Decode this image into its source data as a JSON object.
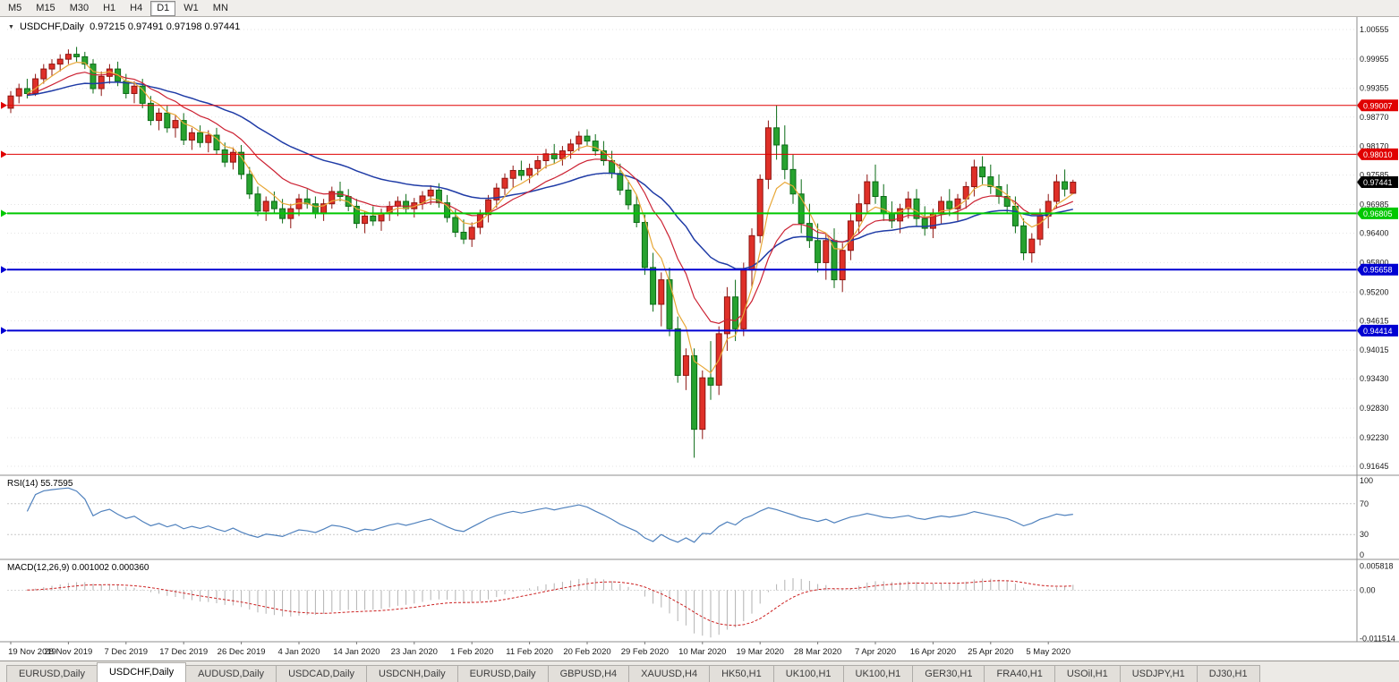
{
  "toolbar": {
    "timeframes": [
      "M5",
      "M15",
      "M30",
      "H1",
      "H4",
      "D1",
      "W1",
      "MN"
    ],
    "active": "D1"
  },
  "header": {
    "dropdown_icon": "▼",
    "symbol": "USDCHF,Daily",
    "ohlc": "0.97215 0.97491 0.97198 0.97441"
  },
  "colors": {
    "bull": "#df3028",
    "bull_border": "#8e1410",
    "bear": "#27a22f",
    "bear_border": "#0b6b16",
    "ma_fast": "#e8a838",
    "ma_mid": "#cc2233",
    "ma_slow": "#1f3ba6",
    "rsi_line": "#4f81bd",
    "macd_hist": "#b2b2b2",
    "macd_signal": "#cc2020",
    "grid": "#e3e3e3",
    "axis_text": "#1a1a1a",
    "line_red": "#e00000",
    "line_green": "#00c800",
    "line_blue": "#0000d2",
    "current_tag_bg": "#000000"
  },
  "chart_data": {
    "type": "candlestick",
    "symbol": "USDCHF",
    "timeframe": "Daily",
    "current_bar": {
      "open": 0.97215,
      "high": 0.97491,
      "low": 0.97198,
      "close": 0.97441
    },
    "price_range_visible": [
      0.91645,
      1.00555
    ],
    "price_axis_labels": [
      "1.00555",
      "0.99955",
      "0.99355",
      "0.98770",
      "0.98170",
      "0.97585",
      "0.96985",
      "0.96400",
      "0.95800",
      "0.95200",
      "0.94615",
      "0.94015",
      "0.93430",
      "0.92830",
      "0.92230",
      "0.91645"
    ],
    "x_tick_labels": [
      "19 Nov 2019",
      "28 Nov 2019",
      "7 Dec 2019",
      "17 Dec 2019",
      "26 Dec 2019",
      "4 Jan 2020",
      "14 Jan 2020",
      "23 Jan 2020",
      "1 Feb 2020",
      "11 Feb 2020",
      "20 Feb 2020",
      "29 Feb 2020",
      "10 Mar 2020",
      "19 Mar 2020",
      "28 Mar 2020",
      "7 Apr 2020",
      "16 Apr 2020",
      "25 Apr 2020",
      "5 May 2020"
    ],
    "candles_per_tick": 7,
    "hlines": [
      {
        "price": 0.99007,
        "label": "0.99007",
        "color": "#e00000",
        "width": 1
      },
      {
        "price": 0.9801,
        "label": "0.98010",
        "color": "#e00000",
        "width": 1
      },
      {
        "price": 0.96805,
        "label": "0.96805",
        "color": "#00c800",
        "width": 2
      },
      {
        "price": 0.95658,
        "label": "0.95658",
        "color": "#0000d2",
        "width": 2
      },
      {
        "price": 0.94414,
        "label": "0.94414",
        "color": "#0000d2",
        "width": 2
      }
    ],
    "current_price": {
      "price": 0.97441,
      "label": "0.97441"
    },
    "moving_averages": [
      {
        "id": "fast",
        "color": "#e8a838",
        "period": 5
      },
      {
        "id": "mid",
        "color": "#cc2233",
        "period": 12
      },
      {
        "id": "slow",
        "color": "#1f3ba6",
        "period": 30
      }
    ],
    "candles": [
      [
        0.9895,
        0.993,
        0.9885,
        0.992
      ],
      [
        0.992,
        0.9945,
        0.9905,
        0.9935
      ],
      [
        0.9935,
        0.9955,
        0.9915,
        0.9925
      ],
      [
        0.9925,
        0.9965,
        0.992,
        0.9955
      ],
      [
        0.9955,
        0.9985,
        0.9945,
        0.9975
      ],
      [
        0.9975,
        0.9995,
        0.996,
        0.9985
      ],
      [
        0.9985,
        1.0005,
        0.997,
        0.9995
      ],
      [
        0.9995,
        1.0015,
        0.9985,
        1.0005
      ],
      [
        1.0005,
        1.002,
        0.999,
        1.0
      ],
      [
        1.0,
        1.001,
        0.9975,
        0.9985
      ],
      [
        0.9985,
        0.9995,
        0.9925,
        0.9935
      ],
      [
        0.9935,
        0.997,
        0.992,
        0.996
      ],
      [
        0.996,
        0.9985,
        0.9945,
        0.9975
      ],
      [
        0.9975,
        0.999,
        0.994,
        0.995
      ],
      [
        0.995,
        0.9965,
        0.9915,
        0.9925
      ],
      [
        0.9925,
        0.995,
        0.9905,
        0.994
      ],
      [
        0.994,
        0.9955,
        0.9895,
        0.9905
      ],
      [
        0.9905,
        0.992,
        0.986,
        0.987
      ],
      [
        0.987,
        0.9895,
        0.985,
        0.9885
      ],
      [
        0.9885,
        0.99,
        0.9845,
        0.9855
      ],
      [
        0.9855,
        0.988,
        0.9835,
        0.987
      ],
      [
        0.987,
        0.9885,
        0.982,
        0.983
      ],
      [
        0.983,
        0.9855,
        0.981,
        0.9845
      ],
      [
        0.9845,
        0.986,
        0.9815,
        0.9825
      ],
      [
        0.9825,
        0.985,
        0.9805,
        0.984
      ],
      [
        0.984,
        0.9855,
        0.98,
        0.981
      ],
      [
        0.981,
        0.9825,
        0.9775,
        0.9785
      ],
      [
        0.9785,
        0.9815,
        0.977,
        0.9805
      ],
      [
        0.9805,
        0.982,
        0.975,
        0.976
      ],
      [
        0.976,
        0.9775,
        0.971,
        0.972
      ],
      [
        0.972,
        0.9735,
        0.9675,
        0.9685
      ],
      [
        0.9685,
        0.9715,
        0.9665,
        0.9705
      ],
      [
        0.9705,
        0.9725,
        0.968,
        0.969
      ],
      [
        0.969,
        0.971,
        0.966,
        0.967
      ],
      [
        0.967,
        0.97,
        0.965,
        0.969
      ],
      [
        0.969,
        0.972,
        0.9675,
        0.971
      ],
      [
        0.971,
        0.973,
        0.969,
        0.97
      ],
      [
        0.97,
        0.9715,
        0.967,
        0.968
      ],
      [
        0.968,
        0.971,
        0.9665,
        0.97
      ],
      [
        0.97,
        0.9735,
        0.969,
        0.9725
      ],
      [
        0.9725,
        0.9745,
        0.9705,
        0.9715
      ],
      [
        0.9715,
        0.973,
        0.9685,
        0.9695
      ],
      [
        0.9695,
        0.971,
        0.965,
        0.966
      ],
      [
        0.966,
        0.9685,
        0.964,
        0.9675
      ],
      [
        0.9675,
        0.9695,
        0.9655,
        0.9665
      ],
      [
        0.9665,
        0.969,
        0.9645,
        0.968
      ],
      [
        0.968,
        0.9705,
        0.9665,
        0.9695
      ],
      [
        0.9695,
        0.9715,
        0.9675,
        0.9705
      ],
      [
        0.9705,
        0.972,
        0.968,
        0.969
      ],
      [
        0.969,
        0.9712,
        0.9672,
        0.9702
      ],
      [
        0.9702,
        0.9726,
        0.9688,
        0.9716
      ],
      [
        0.9716,
        0.9738,
        0.9698,
        0.9728
      ],
      [
        0.9728,
        0.9742,
        0.9692,
        0.9702
      ],
      [
        0.9702,
        0.9718,
        0.9662,
        0.9672
      ],
      [
        0.9672,
        0.9688,
        0.9632,
        0.9642
      ],
      [
        0.9642,
        0.9668,
        0.9618,
        0.9628
      ],
      [
        0.9628,
        0.9662,
        0.9612,
        0.9652
      ],
      [
        0.9652,
        0.9688,
        0.9638,
        0.9678
      ],
      [
        0.9678,
        0.9718,
        0.9662,
        0.9708
      ],
      [
        0.9708,
        0.9742,
        0.9692,
        0.9732
      ],
      [
        0.9732,
        0.9762,
        0.9718,
        0.9752
      ],
      [
        0.9752,
        0.9778,
        0.9732,
        0.9768
      ],
      [
        0.9768,
        0.9788,
        0.9748,
        0.9758
      ],
      [
        0.9758,
        0.9782,
        0.9742,
        0.9772
      ],
      [
        0.9772,
        0.9798,
        0.9758,
        0.9788
      ],
      [
        0.9788,
        0.9812,
        0.9772,
        0.9802
      ],
      [
        0.9802,
        0.9822,
        0.9782,
        0.9792
      ],
      [
        0.9792,
        0.9818,
        0.9778,
        0.9808
      ],
      [
        0.9808,
        0.9832,
        0.9792,
        0.9822
      ],
      [
        0.9822,
        0.9848,
        0.9808,
        0.9838
      ],
      [
        0.9838,
        0.9852,
        0.9818,
        0.9828
      ],
      [
        0.9828,
        0.9842,
        0.9798,
        0.9808
      ],
      [
        0.9808,
        0.9828,
        0.9778,
        0.9788
      ],
      [
        0.9788,
        0.9808,
        0.9752,
        0.9762
      ],
      [
        0.9762,
        0.9782,
        0.9718,
        0.9728
      ],
      [
        0.9728,
        0.9748,
        0.9688,
        0.9698
      ],
      [
        0.9698,
        0.9718,
        0.9652,
        0.9662
      ],
      [
        0.9662,
        0.9678,
        0.9555,
        0.957
      ],
      [
        0.957,
        0.96,
        0.948,
        0.9495
      ],
      [
        0.9495,
        0.956,
        0.945,
        0.9545
      ],
      [
        0.9545,
        0.957,
        0.943,
        0.9445
      ],
      [
        0.9445,
        0.947,
        0.9335,
        0.935
      ],
      [
        0.935,
        0.9405,
        0.932,
        0.939
      ],
      [
        0.939,
        0.9405,
        0.9182,
        0.924
      ],
      [
        0.924,
        0.936,
        0.922,
        0.9345
      ],
      [
        0.9345,
        0.942,
        0.93,
        0.933
      ],
      [
        0.933,
        0.945,
        0.931,
        0.9435
      ],
      [
        0.9435,
        0.953,
        0.94,
        0.951
      ],
      [
        0.951,
        0.9545,
        0.942,
        0.9445
      ],
      [
        0.9445,
        0.958,
        0.943,
        0.9565
      ],
      [
        0.9565,
        0.965,
        0.953,
        0.9635
      ],
      [
        0.9635,
        0.976,
        0.962,
        0.975
      ],
      [
        0.975,
        0.987,
        0.973,
        0.9855
      ],
      [
        0.9855,
        0.9901,
        0.979,
        0.982
      ],
      [
        0.982,
        0.986,
        0.975,
        0.977
      ],
      [
        0.977,
        0.98,
        0.97,
        0.972
      ],
      [
        0.972,
        0.975,
        0.964,
        0.966
      ],
      [
        0.966,
        0.97,
        0.961,
        0.9625
      ],
      [
        0.9625,
        0.966,
        0.956,
        0.958
      ],
      [
        0.958,
        0.964,
        0.9545,
        0.9625
      ],
      [
        0.9625,
        0.965,
        0.9528,
        0.9545
      ],
      [
        0.9545,
        0.962,
        0.952,
        0.9605
      ],
      [
        0.9605,
        0.968,
        0.9585,
        0.9665
      ],
      [
        0.9665,
        0.972,
        0.964,
        0.97
      ],
      [
        0.97,
        0.976,
        0.968,
        0.9745
      ],
      [
        0.9745,
        0.978,
        0.97,
        0.9715
      ],
      [
        0.9715,
        0.974,
        0.9665,
        0.968
      ],
      [
        0.968,
        0.9705,
        0.965,
        0.9665
      ],
      [
        0.9665,
        0.97,
        0.964,
        0.969
      ],
      [
        0.969,
        0.9725,
        0.967,
        0.971
      ],
      [
        0.971,
        0.973,
        0.9655,
        0.967
      ],
      [
        0.967,
        0.9695,
        0.9635,
        0.965
      ],
      [
        0.965,
        0.969,
        0.963,
        0.968
      ],
      [
        0.968,
        0.9715,
        0.966,
        0.9705
      ],
      [
        0.9705,
        0.973,
        0.9675,
        0.969
      ],
      [
        0.969,
        0.972,
        0.9665,
        0.971
      ],
      [
        0.971,
        0.9745,
        0.969,
        0.9735
      ],
      [
        0.9735,
        0.979,
        0.9715,
        0.9775
      ],
      [
        0.9775,
        0.9797,
        0.974,
        0.9755
      ],
      [
        0.9755,
        0.978,
        0.972,
        0.9735
      ],
      [
        0.9735,
        0.976,
        0.97,
        0.9715
      ],
      [
        0.9715,
        0.974,
        0.968,
        0.9695
      ],
      [
        0.9695,
        0.9715,
        0.964,
        0.9655
      ],
      [
        0.9655,
        0.967,
        0.9585,
        0.96
      ],
      [
        0.96,
        0.964,
        0.958,
        0.9628
      ],
      [
        0.9628,
        0.969,
        0.9615,
        0.9675
      ],
      [
        0.9675,
        0.972,
        0.965,
        0.9705
      ],
      [
        0.9705,
        0.976,
        0.969,
        0.9745
      ],
      [
        0.9745,
        0.977,
        0.9715,
        0.973
      ],
      [
        0.97215,
        0.97491,
        0.97198,
        0.97441
      ]
    ]
  },
  "rsi_panel": {
    "label": "RSI(14) 55.7595",
    "axis_labels": [
      "100",
      "70",
      "30",
      "0"
    ],
    "levels": [
      70,
      30
    ]
  },
  "macd_panel": {
    "label": "MACD(12,26,9) 0.001002 0.000360",
    "axis_labels": [
      "0.005818",
      "0.00",
      "-0.011514"
    ]
  },
  "tabs": [
    "EURUSD,Daily",
    "USDCHF,Daily",
    "AUDUSD,Daily",
    "USDCAD,Daily",
    "USDCNH,Daily",
    "EURUSD,Daily",
    "GBPUSD,H4",
    "XAUUSD,H4",
    "HK50,H1",
    "UK100,H1",
    "UK100,H1",
    "GER30,H1",
    "FRA40,H1",
    "USOil,H1",
    "USDJPY,H1",
    "DJ30,H1"
  ],
  "active_tab_index": 1
}
